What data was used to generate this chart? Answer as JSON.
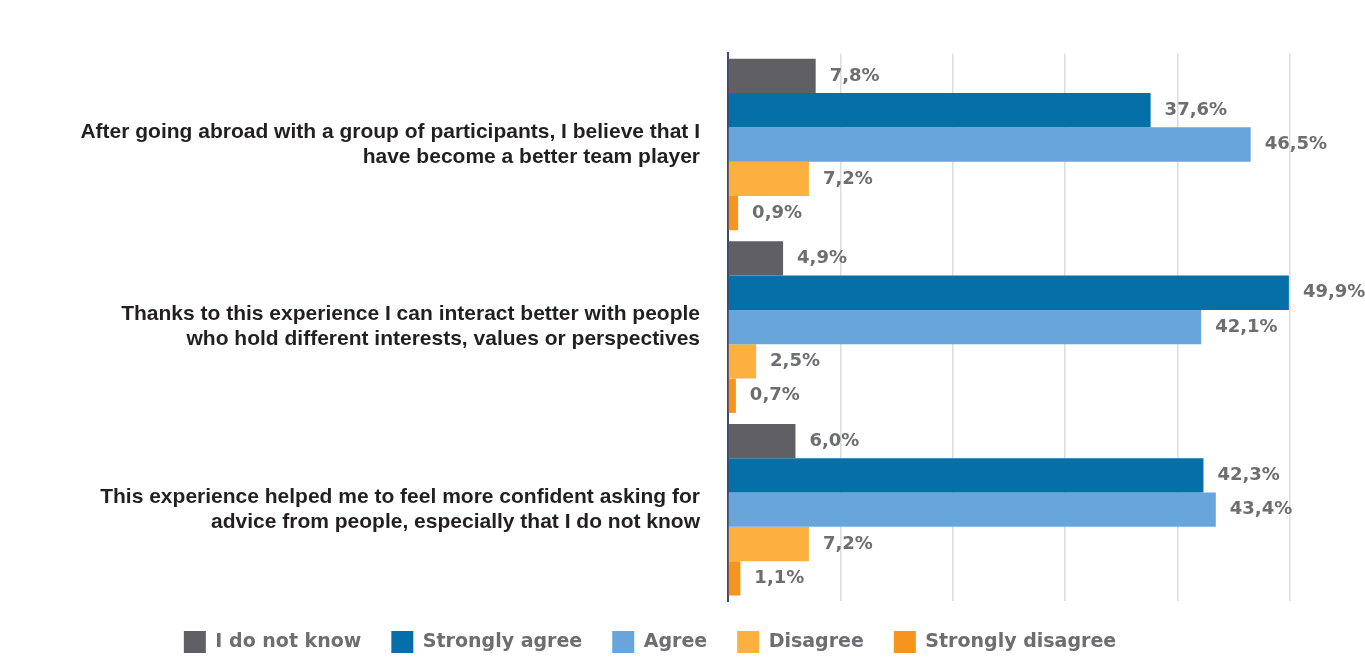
{
  "chart_data": {
    "type": "bar",
    "orientation": "horizontal",
    "categories": [
      "After going abroad with a group of participants, I believe that I have become a better team player",
      "Thanks to this experience I can interact better with people who hold different interests, values or perspectives",
      "This experience helped me to feel more confident asking for advice from people, especially that I do not know"
    ],
    "series": [
      {
        "name": "I do not know",
        "color": "#606064",
        "values": [
          7.8,
          4.9,
          6.0
        ],
        "value_labels": [
          "7,8%",
          "4,9%",
          "6,0%"
        ]
      },
      {
        "name": "Strongly agree",
        "color": "#0570a8",
        "values": [
          37.6,
          49.9,
          42.3
        ],
        "value_labels": [
          "37,6%",
          "49,9%",
          "42,3%"
        ]
      },
      {
        "name": "Agree",
        "color": "#68a5da",
        "values": [
          46.5,
          42.1,
          43.4
        ],
        "value_labels": [
          "46,5%",
          "42,1%",
          "43,4%"
        ]
      },
      {
        "name": "Disagree",
        "color": "#fbb040",
        "values": [
          7.2,
          2.5,
          7.2
        ],
        "value_labels": [
          "7,2%",
          "2,5%",
          "7,2%"
        ]
      },
      {
        "name": "Strongly disagree",
        "color": "#f7941d",
        "values": [
          0.9,
          0.7,
          1.1
        ],
        "value_labels": [
          "0,9%",
          "0,7%",
          "1,1%"
        ]
      }
    ],
    "xlim": [
      0,
      50
    ],
    "xticks": [
      {
        "value": 0,
        "label": null
      },
      {
        "value": 10,
        "label": null
      },
      {
        "value": 20,
        "label": null
      },
      {
        "value": 30,
        "label": null
      },
      {
        "value": 40,
        "label": null
      },
      {
        "value": 50,
        "label": null
      }
    ],
    "tick_labels": "y",
    "grid": "x",
    "legend": "bottom"
  }
}
